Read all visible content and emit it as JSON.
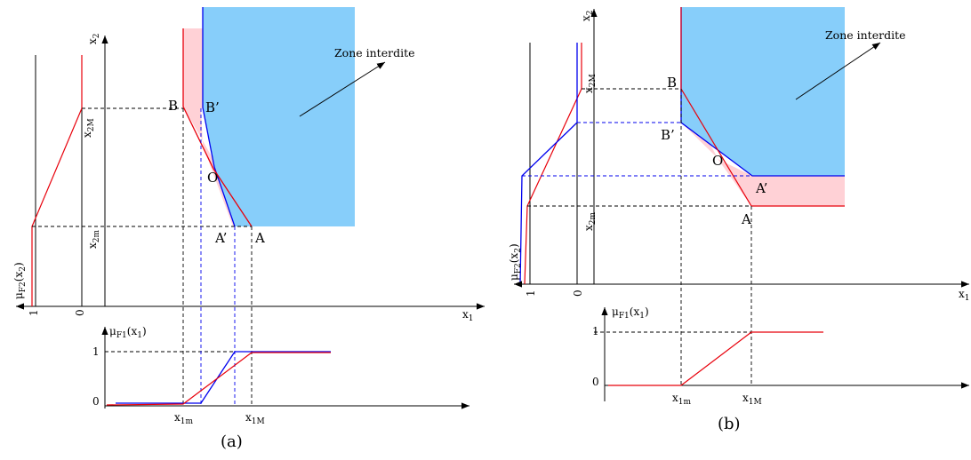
{
  "zone_label": "Zone interdite",
  "points": {
    "A": "A",
    "B": "B",
    "O": "O",
    "A_prime": "A’",
    "B_prime": "B’"
  },
  "axis": {
    "x1": "x",
    "x1_sub": "1",
    "x2": "x",
    "x2_sub": "2",
    "x1m": "x",
    "x1m_sub": "1m",
    "x1M": "x",
    "x1M_sub": "1M",
    "x2m": "x",
    "x2m_sub": "2m",
    "x2M": "x",
    "x2M_sub": "2M"
  },
  "mu": {
    "mu1": "μ",
    "mu1_sub": "F1",
    "mu1_arg": "(x",
    "mu1_arg_sub": "1",
    "mu1_close": ")",
    "mu2": "μ",
    "mu2_sub": "F2",
    "mu2_arg": "(x",
    "mu2_arg_sub": "2",
    "mu2_close": ")"
  },
  "ticks": {
    "zero": "0",
    "one": "1"
  },
  "captions": {
    "a": "(a)",
    "b": "(b)"
  },
  "colors": {
    "zone_fill": "#87cefa",
    "pink_fill": "#ffd1d6",
    "red_line": "#e8000b",
    "blue_line": "#0000ee",
    "axis": "#000000"
  }
}
